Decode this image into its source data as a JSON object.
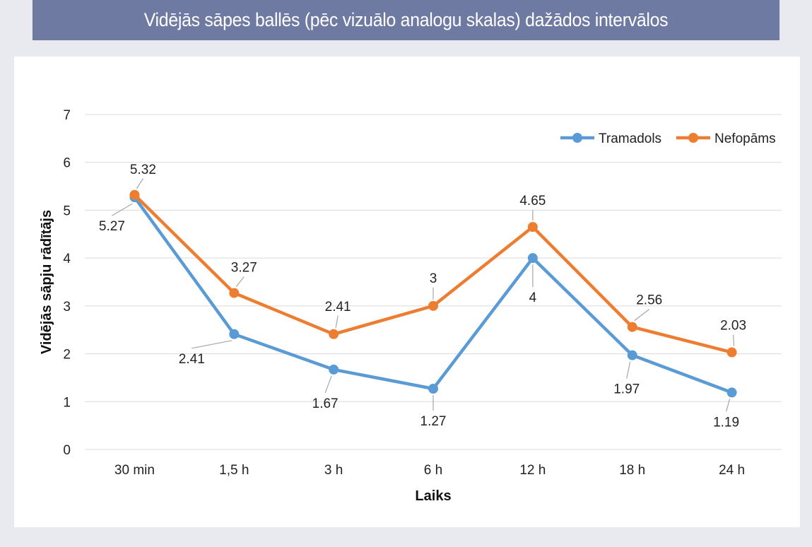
{
  "title": "Vidējās sāpes ballēs (pēc vizuālo analogu skalas) dažādos intervālos",
  "chart_data": {
    "type": "line",
    "title": "Vidējās sāpes ballēs (pēc vizuālo analogu skalas) dažādos intervālos",
    "xlabel": "Laiks",
    "ylabel": "Vidējās sāpju rādītājs",
    "categories": [
      "30 min",
      "1,5 h",
      "3 h",
      "6 h",
      "12 h",
      "18 h",
      "24 h"
    ],
    "ylim": [
      0,
      7
    ],
    "yticks": [
      0,
      1,
      2,
      3,
      4,
      5,
      6,
      7
    ],
    "grid": true,
    "legend_position": "top-right",
    "series": [
      {
        "name": "Tramadols",
        "color": "#5b9bd5",
        "values": [
          5.27,
          2.41,
          1.67,
          1.27,
          4,
          1.97,
          1.19
        ],
        "labels": [
          "5.27",
          "2.41",
          "1.67",
          "1.27",
          "4",
          "1.97",
          "1.19"
        ]
      },
      {
        "name": "Nefopāms",
        "color": "#ed7d31",
        "values": [
          5.32,
          3.27,
          2.41,
          3,
          4.65,
          2.56,
          2.03
        ],
        "labels": [
          "5.32",
          "3.27",
          "2.41",
          "3",
          "4.65",
          "2.56",
          "2.03"
        ]
      }
    ]
  }
}
